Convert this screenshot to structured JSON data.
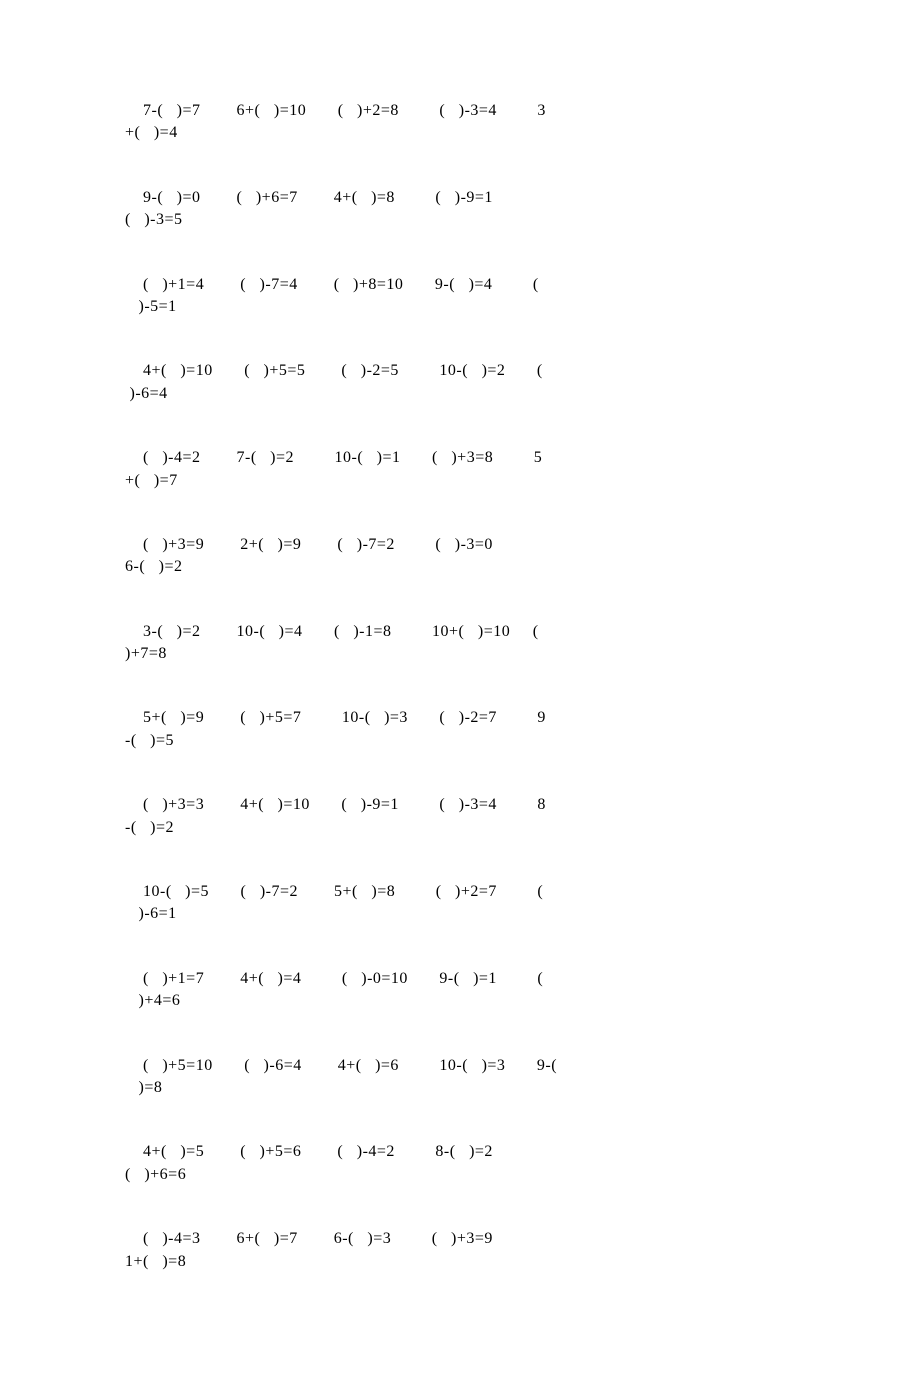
{
  "font": {
    "family": "SimSun",
    "size_pt": 12,
    "color": "#000000"
  },
  "background_color": "#ffffff",
  "groups": [
    [
      "    7-(   )=7        6+(   )=10       (   )+2=8         (   )-3=4         3",
      "+(   )=4"
    ],
    [
      "    9-(   )=0        (   )+6=7        4+(   )=8         (   )-9=1       ",
      "(   )-3=5"
    ],
    [
      "    (   )+1=4        (   )-7=4        (   )+8=10       9-(   )=4         (",
      "   )-5=1"
    ],
    [
      "    4+(   )=10       (   )+5=5        (   )-2=5         10-(   )=2       (  ",
      " )-6=4"
    ],
    [
      "    (   )-4=2        7-(   )=2         10-(   )=1       (   )+3=8         5",
      "+(   )=7"
    ],
    [
      "    (   )+3=9        2+(   )=9        (   )-7=2         (   )-3=0       ",
      "6-(   )=2"
    ],
    [
      "    3-(   )=2        10-(   )=4       (   )-1=8         10+(   )=10     (   ",
      ")+7=8"
    ],
    [
      "    5+(   )=9        (   )+5=7         10-(   )=3       (   )-2=7         9",
      "-(   )=5"
    ],
    [
      "    (   )+3=3        4+(   )=10       (   )-9=1         (   )-3=4         8",
      "-(   )=2"
    ],
    [
      "    10-(   )=5       (   )-7=2        5+(   )=8         (   )+2=7         (",
      "   )-6=1"
    ],
    [
      "    (   )+1=7        4+(   )=4         (   )-0=10       9-(   )=1         (",
      "   )+4=6"
    ],
    [
      "    (   )+5=10       (   )-6=4        4+(   )=6         10-(   )=3       9-(",
      "   )=8"
    ],
    [
      "    4+(   )=5        (   )+5=6        (   )-4=2         8-(   )=2       ",
      "(   )+6=6"
    ],
    [
      "    (   )-4=3        6+(   )=7        6-(   )=3         (   )+3=9       ",
      "1+(   )=8"
    ]
  ]
}
